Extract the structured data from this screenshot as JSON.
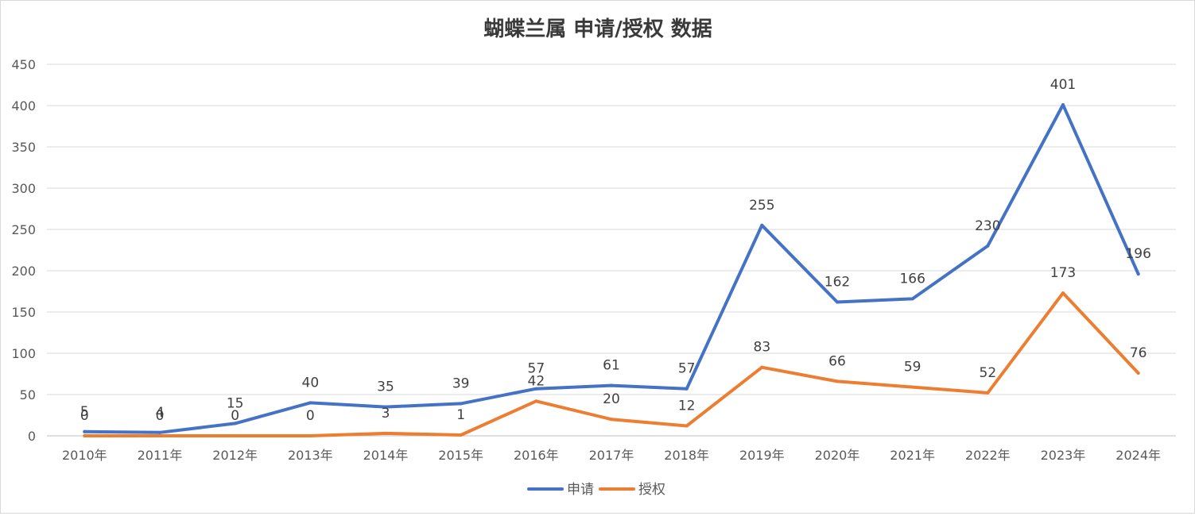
{
  "chart_data": {
    "type": "line",
    "title": "蝴蝶兰属 申请/授权 数据",
    "xlabel": "",
    "ylabel": "",
    "ylim": [
      0,
      450
    ],
    "yticks": [
      0,
      50,
      100,
      150,
      200,
      250,
      300,
      350,
      400,
      450
    ],
    "categories": [
      "2010年",
      "2011年",
      "2012年",
      "2013年",
      "2014年",
      "2015年",
      "2016年",
      "2017年",
      "2018年",
      "2019年",
      "2020年",
      "2021年",
      "2022年",
      "2023年",
      "2024年"
    ],
    "series": [
      {
        "name": "申请",
        "color": "#4472c4",
        "values": [
          5,
          4,
          15,
          40,
          35,
          39,
          57,
          61,
          57,
          255,
          162,
          166,
          230,
          401,
          196
        ]
      },
      {
        "name": "授权",
        "color": "#ed7d31",
        "values": [
          0,
          0,
          0,
          0,
          3,
          1,
          42,
          20,
          12,
          83,
          66,
          59,
          52,
          173,
          76
        ]
      }
    ],
    "legend_position": "bottom",
    "grid": true
  }
}
